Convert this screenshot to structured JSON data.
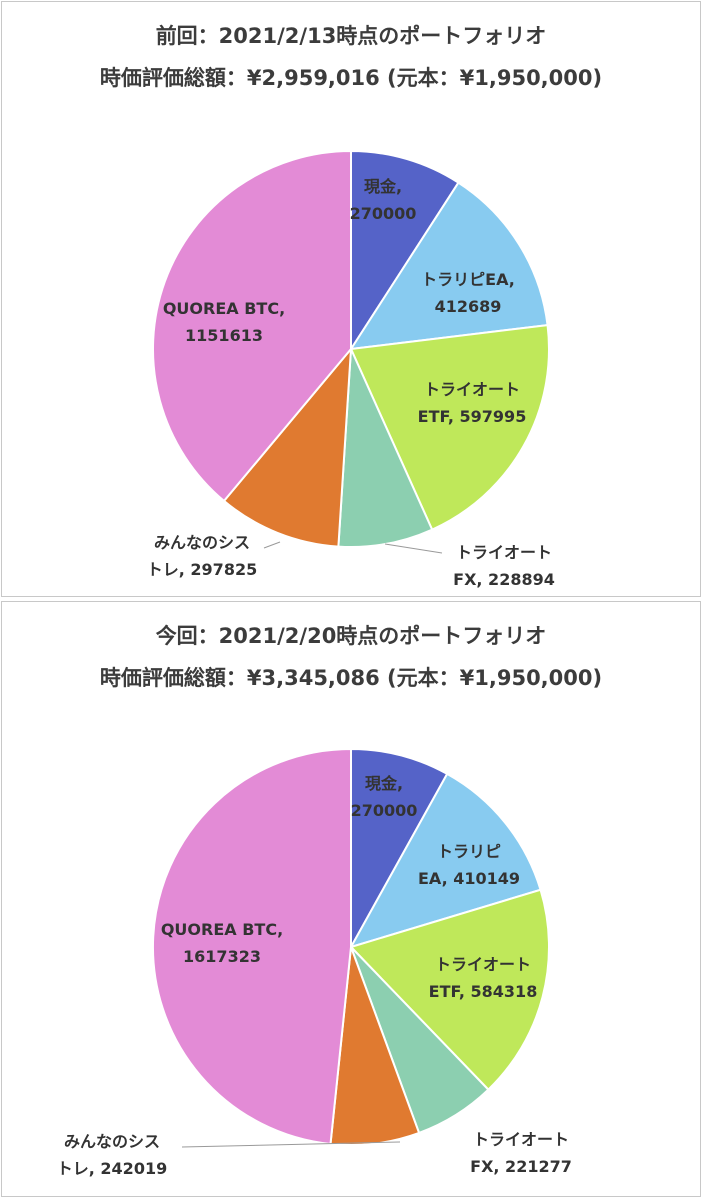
{
  "chart_data": [
    {
      "type": "pie",
      "title": "前回：2021/2/13時点のポートフォリオ",
      "subtitle": "時価評価総額：¥2,959,016 (元本：¥1,950,000)",
      "categories": [
        "現金",
        "トラリピEA",
        "トライオートETF",
        "トライオートFX",
        "みんなのシストレ",
        "QUOREA BTC"
      ],
      "values": [
        270000,
        412689,
        597995,
        228894,
        297825,
        1151613
      ],
      "labels": [
        [
          "現金,",
          "270000"
        ],
        [
          "トラリピEA,",
          "412689"
        ],
        [
          "トライオート",
          "ETF, 597995"
        ],
        [
          "トライオート",
          "FX, 228894"
        ],
        [
          "みんなのシス",
          "トレ, 297825"
        ],
        [
          "QUOREA BTC,",
          "1151613"
        ]
      ],
      "colors": [
        "#5563c8",
        "#88cbf0",
        "#bfe85a",
        "#8ccfb0",
        "#e07a30",
        "#e38bd6"
      ]
    },
    {
      "type": "pie",
      "title": "今回：2021/2/20時点のポートフォリオ",
      "subtitle": "時価評価総額：¥3,345,086 (元本：¥1,950,000)",
      "categories": [
        "現金",
        "トラリピEA",
        "トライオートETF",
        "トライオートFX",
        "みんなのシストレ",
        "QUOREA BTC"
      ],
      "values": [
        270000,
        410149,
        584318,
        221277,
        242019,
        1617323
      ],
      "labels": [
        [
          "現金,",
          "270000"
        ],
        [
          "トラリピ",
          "EA, 410149"
        ],
        [
          "トライオート",
          "ETF, 584318"
        ],
        [
          "トライオート",
          "FX, 221277"
        ],
        [
          "みんなのシス",
          "トレ, 242019"
        ],
        [
          "QUOREA BTC,",
          "1617323"
        ]
      ],
      "colors": [
        "#5563c8",
        "#88cbf0",
        "#bfe85a",
        "#8ccfb0",
        "#e07a30",
        "#e38bd6"
      ]
    }
  ]
}
